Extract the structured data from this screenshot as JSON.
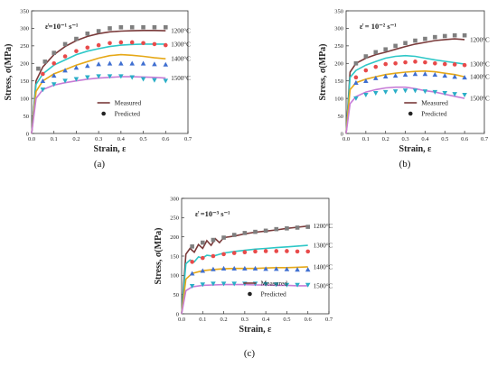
{
  "chart_data": [
    {
      "id": "a",
      "caption": "(a)",
      "type": "line",
      "rate_label": "ε̇=10⁻¹ s⁻¹",
      "xlabel": "Strain, ε",
      "ylabel": "Stress, σ(MPa)",
      "xlim": [
        0,
        0.7
      ],
      "ylim": [
        0,
        350
      ],
      "xticks": [
        "0.0",
        "0.1",
        "0.2",
        "0.3",
        "0.4",
        "0.5",
        "0.6",
        "0.7"
      ],
      "yticks": [
        "0",
        "50",
        "100",
        "150",
        "200",
        "250",
        "300",
        "350"
      ],
      "legend": {
        "measured": "Measured",
        "predicted": "Predicted",
        "position": "bottom-right"
      },
      "series": [
        {
          "label": "1200°C",
          "color": "#7a3a3a",
          "marker": "square",
          "marker_color": "#7f7f7f",
          "measured": {
            "x": [
              0,
              0.02,
              0.05,
              0.1,
              0.15,
              0.2,
              0.25,
              0.3,
              0.35,
              0.4,
              0.45,
              0.5,
              0.55,
              0.6
            ],
            "y": [
              0,
              150,
              190,
              225,
              248,
              265,
              277,
              285,
              290,
              292,
              293,
              294,
              294,
              293
            ]
          },
          "predicted": {
            "x": [
              0.03,
              0.06,
              0.1,
              0.15,
              0.2,
              0.25,
              0.3,
              0.35,
              0.4,
              0.45,
              0.5,
              0.55,
              0.6
            ],
            "y": [
              185,
              205,
              230,
              255,
              270,
              285,
              292,
              300,
              303,
              303,
              303,
              303,
              303
            ]
          }
        },
        {
          "label": "1300°C",
          "color": "#2ec7c7",
          "marker": "circle",
          "marker_color": "#e84a4a",
          "measured": {
            "x": [
              0,
              0.02,
              0.05,
              0.1,
              0.15,
              0.2,
              0.25,
              0.3,
              0.35,
              0.4,
              0.45,
              0.5,
              0.55,
              0.6
            ],
            "y": [
              0,
              140,
              170,
              195,
              210,
              225,
              235,
              242,
              248,
              252,
              254,
              255,
              255,
              255
            ]
          },
          "predicted": {
            "x": [
              0.05,
              0.1,
              0.15,
              0.2,
              0.25,
              0.3,
              0.35,
              0.4,
              0.45,
              0.5,
              0.55,
              0.6
            ],
            "y": [
              170,
              200,
              220,
              235,
              245,
              252,
              258,
              260,
              260,
              258,
              255,
              252
            ]
          }
        },
        {
          "label": "1400°C",
          "color": "#e6a817",
          "marker": "triangle-up",
          "marker_color": "#3f6fd1",
          "measured": {
            "x": [
              0,
              0.02,
              0.05,
              0.1,
              0.15,
              0.2,
              0.25,
              0.3,
              0.35,
              0.4,
              0.45,
              0.5,
              0.55,
              0.6
            ],
            "y": [
              0,
              120,
              150,
              170,
              182,
              195,
              205,
              215,
              222,
              225,
              223,
              220,
              216,
              213
            ]
          },
          "predicted": {
            "x": [
              0.05,
              0.1,
              0.15,
              0.2,
              0.25,
              0.3,
              0.35,
              0.4,
              0.45,
              0.5,
              0.55,
              0.6
            ],
            "y": [
              150,
              165,
              180,
              188,
              193,
              198,
              200,
              200,
              200,
              200,
              198,
              197
            ]
          }
        },
        {
          "label": "1500°C",
          "color": "#c77cd6",
          "marker": "triangle-down",
          "marker_color": "#2aaec7",
          "measured": {
            "x": [
              0,
              0.02,
              0.05,
              0.1,
              0.15,
              0.2,
              0.25,
              0.3,
              0.35,
              0.4,
              0.45,
              0.5,
              0.55,
              0.6
            ],
            "y": [
              0,
              100,
              125,
              138,
              145,
              150,
              155,
              158,
              160,
              162,
              162,
              161,
              160,
              158
            ]
          },
          "predicted": {
            "x": [
              0.05,
              0.1,
              0.15,
              0.2,
              0.25,
              0.3,
              0.35,
              0.4,
              0.45,
              0.5,
              0.55,
              0.6
            ],
            "y": [
              125,
              140,
              150,
              155,
              160,
              163,
              163,
              163,
              160,
              155,
              152,
              150
            ]
          }
        }
      ]
    },
    {
      "id": "b",
      "caption": "(b)",
      "type": "line",
      "rate_label": "ε̇ = 10⁻² s⁻¹",
      "xlabel": "Strain, ε",
      "ylabel": "Stress, σ(MPa)",
      "xlim": [
        0,
        0.7
      ],
      "ylim": [
        0,
        350
      ],
      "xticks": [
        "0.0",
        "0.1",
        "0.2",
        "0.3",
        "0.4",
        "0.5",
        "0.6",
        "0.7"
      ],
      "yticks": [
        "0",
        "50",
        "100",
        "150",
        "200",
        "250",
        "300",
        "350"
      ],
      "legend": {
        "measured": "Measured",
        "predicted": "Predicted",
        "position": "bottom-right"
      },
      "series": [
        {
          "label": "1200°C",
          "color": "#7a3a3a",
          "marker": "square",
          "marker_color": "#7f7f7f",
          "measured": {
            "x": [
              0,
              0.02,
              0.05,
              0.1,
              0.15,
              0.2,
              0.25,
              0.3,
              0.35,
              0.4,
              0.45,
              0.5,
              0.55,
              0.6
            ],
            "y": [
              0,
              175,
              200,
              215,
              225,
              232,
              240,
              248,
              255,
              260,
              265,
              268,
              270,
              268
            ]
          },
          "predicted": {
            "x": [
              0.05,
              0.1,
              0.15,
              0.2,
              0.25,
              0.3,
              0.35,
              0.4,
              0.45,
              0.5,
              0.55,
              0.6
            ],
            "y": [
              200,
              220,
              232,
              240,
              250,
              258,
              265,
              270,
              275,
              278,
              280,
              280
            ]
          }
        },
        {
          "label": "1300°C",
          "color": "#2ec7c7",
          "marker": "circle",
          "marker_color": "#e84a4a",
          "measured": {
            "x": [
              0,
              0.02,
              0.05,
              0.1,
              0.15,
              0.2,
              0.25,
              0.3,
              0.35,
              0.4,
              0.45,
              0.5,
              0.55,
              0.6
            ],
            "y": [
              0,
              160,
              180,
              195,
              205,
              215,
              220,
              222,
              220,
              215,
              210,
              206,
              202,
              198
            ]
          },
          "predicted": {
            "x": [
              0.05,
              0.1,
              0.15,
              0.2,
              0.25,
              0.3,
              0.35,
              0.4,
              0.45,
              0.5,
              0.55,
              0.6
            ],
            "y": [
              160,
              180,
              190,
              198,
              200,
              203,
              205,
              203,
              200,
              198,
              197,
              195
            ]
          }
        },
        {
          "label": "1400°C",
          "color": "#e6a817",
          "marker": "triangle-up",
          "marker_color": "#3f6fd1",
          "measured": {
            "x": [
              0,
              0.02,
              0.05,
              0.1,
              0.15,
              0.2,
              0.25,
              0.3,
              0.35,
              0.4,
              0.45,
              0.5,
              0.55,
              0.6
            ],
            "y": [
              0,
              125,
              145,
              155,
              162,
              168,
              172,
              175,
              177,
              178,
              176,
              172,
              168,
              162
            ]
          },
          "predicted": {
            "x": [
              0.05,
              0.1,
              0.15,
              0.2,
              0.25,
              0.3,
              0.35,
              0.4,
              0.45,
              0.5,
              0.55,
              0.6
            ],
            "y": [
              145,
              150,
              158,
              163,
              165,
              168,
              170,
              170,
              168,
              165,
              162,
              160
            ]
          }
        },
        {
          "label": "1500°C",
          "color": "#c77cd6",
          "marker": "triangle-down",
          "marker_color": "#2aaec7",
          "measured": {
            "x": [
              0,
              0.02,
              0.05,
              0.1,
              0.15,
              0.2,
              0.25,
              0.3,
              0.35,
              0.4,
              0.45,
              0.5,
              0.55,
              0.6
            ],
            "y": [
              0,
              85,
              105,
              118,
              125,
              130,
              132,
              132,
              128,
              122,
              118,
              112,
              106,
              100
            ]
          },
          "predicted": {
            "x": [
              0.05,
              0.1,
              0.15,
              0.2,
              0.25,
              0.3,
              0.35,
              0.4,
              0.45,
              0.5,
              0.55,
              0.6
            ],
            "y": [
              100,
              110,
              115,
              118,
              120,
              122,
              122,
              120,
              118,
              115,
              112,
              110
            ]
          }
        }
      ]
    },
    {
      "id": "c",
      "caption": "(c)",
      "type": "line",
      "rate_label": "ε̇ =10⁻³ s⁻¹",
      "xlabel": "Strain, ε",
      "ylabel": "Stress, σ(MPa)",
      "xlim": [
        0,
        0.7
      ],
      "ylim": [
        0,
        300
      ],
      "xticks": [
        "0.0",
        "0.1",
        "0.2",
        "0.3",
        "0.4",
        "0.5",
        "0.6",
        "0.7"
      ],
      "yticks": [
        "0",
        "50",
        "100",
        "150",
        "200",
        "250",
        "300"
      ],
      "legend": {
        "measured": "Measured",
        "predicted": "Predicted",
        "position": "bottom-right"
      },
      "series": [
        {
          "label": "1200°C",
          "color": "#7a3a3a",
          "marker": "square",
          "marker_color": "#7f7f7f",
          "measured": {
            "x": [
              0,
              0.02,
              0.04,
              0.06,
              0.08,
              0.1,
              0.12,
              0.14,
              0.16,
              0.18,
              0.2,
              0.25,
              0.3,
              0.35,
              0.4,
              0.45,
              0.5,
              0.55,
              0.6
            ],
            "y": [
              0,
              155,
              170,
              160,
              180,
              170,
              190,
              178,
              195,
              185,
              198,
              202,
              208,
              212,
              215,
              218,
              222,
              225,
              228
            ]
          },
          "predicted": {
            "x": [
              0.05,
              0.1,
              0.15,
              0.2,
              0.25,
              0.3,
              0.35,
              0.4,
              0.45,
              0.5,
              0.55,
              0.6
            ],
            "y": [
              175,
              185,
              192,
              198,
              205,
              210,
              213,
              216,
              220,
              222,
              224,
              226
            ]
          }
        },
        {
          "label": "1300°C",
          "color": "#2ec7c7",
          "marker": "circle",
          "marker_color": "#e84a4a",
          "measured": {
            "x": [
              0,
              0.02,
              0.04,
              0.06,
              0.08,
              0.1,
              0.12,
              0.15,
              0.2,
              0.25,
              0.3,
              0.35,
              0.4,
              0.45,
              0.5,
              0.55,
              0.6
            ],
            "y": [
              0,
              130,
              140,
              135,
              148,
              145,
              152,
              150,
              158,
              162,
              165,
              168,
              170,
              172,
              174,
              176,
              178
            ]
          },
          "predicted": {
            "x": [
              0.05,
              0.1,
              0.15,
              0.2,
              0.25,
              0.3,
              0.35,
              0.4,
              0.45,
              0.5,
              0.55,
              0.6
            ],
            "y": [
              135,
              145,
              150,
              155,
              158,
              160,
              162,
              163,
              163,
              163,
              162,
              162
            ]
          }
        },
        {
          "label": "1400°C",
          "color": "#e6a817",
          "marker": "triangle-up",
          "marker_color": "#3f6fd1",
          "measured": {
            "x": [
              0,
              0.02,
              0.05,
              0.1,
              0.15,
              0.2,
              0.25,
              0.3,
              0.35,
              0.4,
              0.45,
              0.5,
              0.55,
              0.6
            ],
            "y": [
              0,
              90,
              105,
              112,
              115,
              117,
              118,
              118,
              118,
              119,
              120,
              120,
              121,
              122
            ]
          },
          "predicted": {
            "x": [
              0.05,
              0.1,
              0.15,
              0.2,
              0.25,
              0.3,
              0.35,
              0.4,
              0.45,
              0.5,
              0.55,
              0.6
            ],
            "y": [
              105,
              112,
              116,
              118,
              118,
              118,
              118,
              117,
              117,
              116,
              115,
              115
            ]
          }
        },
        {
          "label": "1500°C",
          "color": "#c77cd6",
          "marker": "triangle-down",
          "marker_color": "#2aaec7",
          "measured": {
            "x": [
              0,
              0.02,
              0.05,
              0.1,
              0.15,
              0.2,
              0.25,
              0.3,
              0.35,
              0.4,
              0.45,
              0.5,
              0.55,
              0.6
            ],
            "y": [
              0,
              60,
              70,
              74,
              75,
              76,
              76,
              76,
              75,
              75,
              74,
              74,
              73,
              73
            ]
          },
          "predicted": {
            "x": [
              0.05,
              0.1,
              0.15,
              0.2,
              0.25,
              0.3,
              0.35,
              0.4,
              0.45,
              0.5,
              0.55,
              0.6
            ],
            "y": [
              72,
              76,
              78,
              78,
              78,
              78,
              78,
              77,
              76,
              75,
              75,
              75
            ]
          }
        }
      ]
    }
  ]
}
